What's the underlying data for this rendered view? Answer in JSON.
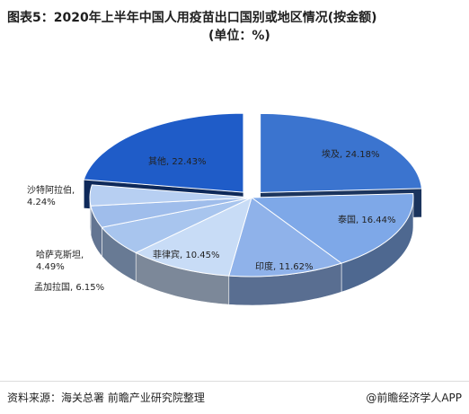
{
  "header": {
    "title_line1": "图表5：2020年上半年中国人用疫苗出口国别或地区情况(按金额)",
    "title_line2": "(单位：%)"
  },
  "footer": {
    "source": "资料来源：海关总署  前瞻产业研究院整理",
    "brand": "@前瞻经济学人APP"
  },
  "chart_data": {
    "type": "pie",
    "title": "图表5：2020年上半年中国人用疫苗出口国别或地区情况(按金额)(单位：%)",
    "unit": "%",
    "slices": [
      {
        "label": "埃及",
        "value": 24.18,
        "display": "埃及, 24.18%",
        "color": "#3b74cf",
        "exploded": true
      },
      {
        "label": "泰国",
        "value": 16.44,
        "display": "泰国, 16.44%",
        "color": "#7ea8e8"
      },
      {
        "label": "印度",
        "value": 11.62,
        "display": "印度, 11.62%",
        "color": "#8fb2ea"
      },
      {
        "label": "菲律宾",
        "value": 10.45,
        "display": "菲律宾, 10.45%",
        "color": "#c8dcf6"
      },
      {
        "label": "孟加拉国",
        "value": 6.15,
        "display": "孟加拉国, 6.15%",
        "color": "#a8c5ee"
      },
      {
        "label": "哈萨克斯坦",
        "value": 4.49,
        "display": "哈萨克斯坦,\n4.49%",
        "color": "#9fbdeb"
      },
      {
        "label": "沙特阿拉伯",
        "value": 4.24,
        "display": "沙特阿拉伯,\n4.24%",
        "color": "#b7cff2"
      },
      {
        "label": "其他",
        "value": 22.43,
        "display": "其他, 22.43%",
        "color": "#1f5cc8",
        "exploded": true
      }
    ]
  }
}
